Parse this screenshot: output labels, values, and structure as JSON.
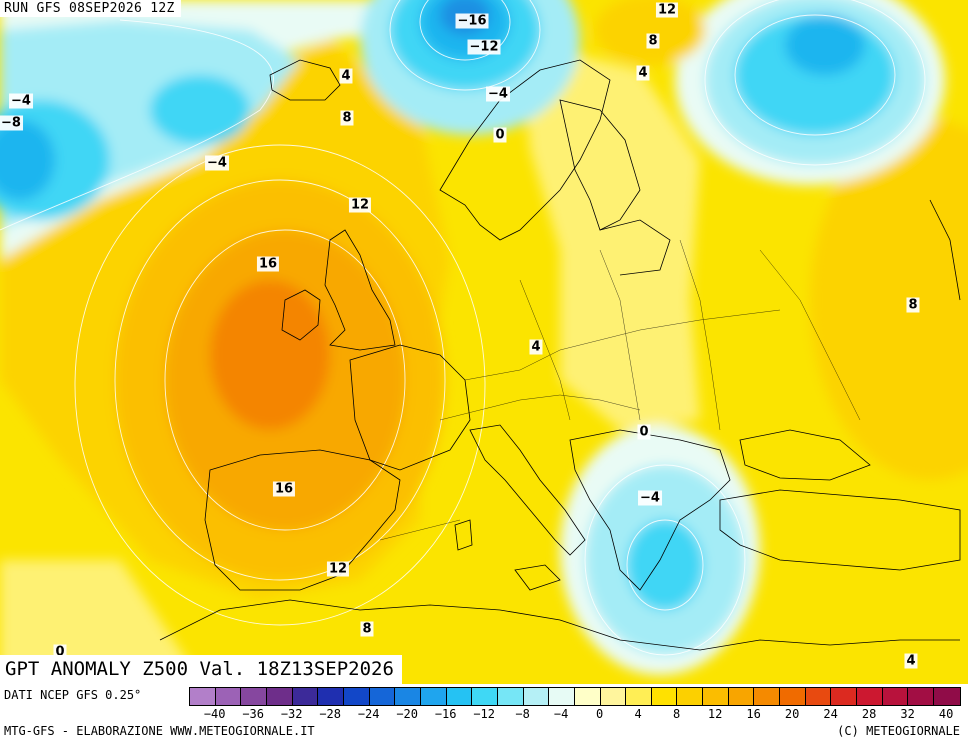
{
  "header": {
    "run": "RUN GFS 08SEP2026 12Z",
    "title": "GPT ANOMALY Z500 Val. 18Z13SEP2026"
  },
  "footer": {
    "source": "DATI NCEP GFS 0.25°",
    "credit_left": "MTG-GFS - ELABORAZIONE WWW.METEOGIORNALE.IT",
    "credit_right": "(C) METEOGIORNALE"
  },
  "legend": {
    "swatch_colors": [
      "#b27fc9",
      "#9c62b6",
      "#86479f",
      "#6e2e8a",
      "#3c2a99",
      "#1f2fb0",
      "#1247c8",
      "#1566d8",
      "#1a86e4",
      "#1fa5ee",
      "#25c2f3",
      "#3fd8f5",
      "#76e6f6",
      "#b5f0f6",
      "#e7fbf5",
      "#ffffc8",
      "#fff59d",
      "#ffee55",
      "#ffe100",
      "#fcd000",
      "#fbbd00",
      "#f8a500",
      "#f58a00",
      "#f06b00",
      "#e84a10",
      "#dc2a20",
      "#cc1830",
      "#b8123c",
      "#a20e44",
      "#900c48"
    ],
    "ticks": [
      "−40",
      "−36",
      "−32",
      "−28",
      "−24",
      "−20",
      "−16",
      "−12",
      "−8",
      "−4",
      "0",
      "4",
      "8",
      "12",
      "16",
      "20",
      "24",
      "28",
      "32",
      "40"
    ]
  },
  "contour_labels": [
    "−16",
    "−12",
    "12",
    "8",
    "4",
    "−4",
    "−8",
    "−4",
    "4",
    "8",
    "−4",
    "0",
    "−4",
    "12",
    "16",
    "8",
    "4",
    "0",
    "−4",
    "16",
    "12",
    "8",
    "0",
    "4"
  ],
  "map_colors": {
    "base": "#fbe400",
    "anom_pos_16": "#f8a800",
    "anom_pos_20": "#f48500",
    "anom_pos_12": "#fbbf00",
    "anom_pos_8": "#fcd300",
    "anom_pos_4": "#fef173",
    "anom_neg_0": "#e9fbf5",
    "anom_neg_4": "#a4ecf6",
    "anom_neg_8": "#40d6f5",
    "anom_neg_12": "#1fb5ef",
    "anom_neg_16": "#1a8fe2"
  }
}
